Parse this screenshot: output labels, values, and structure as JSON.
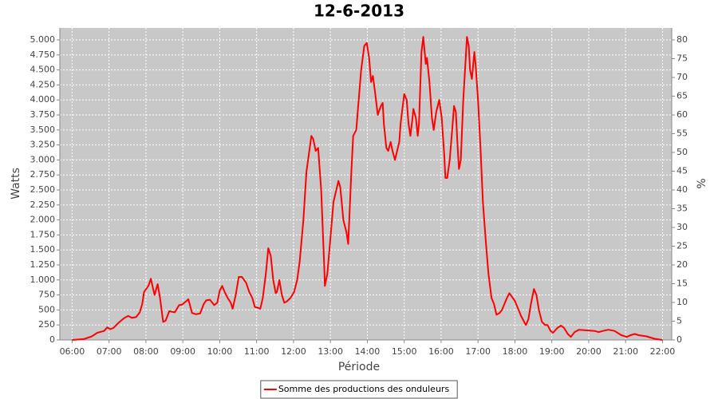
{
  "chart_data": {
    "type": "line",
    "title": "12-6-2013",
    "xlabel": "Période",
    "ylabel": "Watts",
    "y2label": "%",
    "x": [
      "06:00",
      "06:19",
      "06:32",
      "06:41",
      "06:52",
      "06:57",
      "07:02",
      "07:07",
      "07:15",
      "07:24",
      "07:31",
      "07:37",
      "07:44",
      "07:50",
      "07:54",
      "07:57",
      "08:04",
      "08:08",
      "08:14",
      "08:19",
      "08:23",
      "08:28",
      "08:32",
      "08:38",
      "08:42",
      "08:47",
      "08:54",
      "08:59",
      "09:06",
      "09:09",
      "09:15",
      "09:21",
      "09:28",
      "09:34",
      "09:38",
      "09:44",
      "09:51",
      "09:56",
      "10:00",
      "10:04",
      "10:08",
      "10:13",
      "10:18",
      "10:21",
      "10:26",
      "10:31",
      "10:36",
      "10:43",
      "10:48",
      "10:53",
      "10:57",
      "11:01",
      "11:06",
      "11:10",
      "11:15",
      "11:19",
      "11:23",
      "11:27",
      "11:31",
      "11:33",
      "11:37",
      "11:41",
      "11:45",
      "11:49",
      "11:55",
      "12:01",
      "12:06",
      "12:10",
      "12:16",
      "12:21",
      "12:29",
      "12:32",
      "12:36",
      "12:40",
      "12:45",
      "12:50",
      "12:51",
      "12:55",
      "13:00",
      "13:05",
      "13:13",
      "13:16",
      "13:21",
      "13:26",
      "13:29",
      "13:31",
      "13:34",
      "13:37",
      "13:42",
      "13:44",
      "13:50",
      "13:55",
      "13:59",
      "14:03",
      "14:06",
      "14:09",
      "14:13",
      "14:17",
      "14:22",
      "14:25",
      "14:27",
      "14:31",
      "14:34",
      "14:38",
      "14:41",
      "14:45",
      "14:52",
      "14:54",
      "15:00",
      "15:04",
      "15:07",
      "15:10",
      "15:13",
      "15:15",
      "15:19",
      "15:22",
      "15:24",
      "15:28",
      "15:31",
      "15:35",
      "15:37",
      "15:41",
      "15:45",
      "15:48",
      "15:52",
      "15:57",
      "16:01",
      "16:05",
      "16:07",
      "16:10",
      "16:14",
      "16:18",
      "16:21",
      "16:24",
      "16:27",
      "16:29",
      "16:32",
      "16:36",
      "16:40",
      "16:42",
      "16:45",
      "16:47",
      "16:50",
      "16:54",
      "16:56",
      "17:00",
      "17:04",
      "17:08",
      "17:13",
      "17:17",
      "17:22",
      "17:26",
      "17:30",
      "17:35",
      "17:39",
      "17:43",
      "17:47",
      "17:51",
      "17:53",
      "18:00",
      "18:06",
      "18:10",
      "18:16",
      "18:18",
      "18:22",
      "18:26",
      "18:31",
      "18:35",
      "18:39",
      "18:44",
      "18:49",
      "18:53",
      "18:58",
      "19:02",
      "19:09",
      "19:15",
      "19:20",
      "19:26",
      "19:31",
      "19:37",
      "19:44",
      "19:57",
      "20:10",
      "20:16",
      "20:23",
      "20:32",
      "20:42",
      "20:53",
      "21:02",
      "21:08",
      "21:15",
      "21:21",
      "21:34",
      "21:47",
      "22:00"
    ],
    "series": [
      {
        "name": "Somme des productions des onduleurs",
        "color": "#ff0000",
        "values": [
          0,
          15,
          60,
          120,
          150,
          210,
          180,
          200,
          280,
          360,
          400,
          370,
          380,
          460,
          600,
          800,
          900,
          1020,
          750,
          930,
          700,
          300,
          320,
          480,
          470,
          460,
          580,
          590,
          650,
          680,
          450,
          430,
          440,
          600,
          660,
          670,
          580,
          620,
          820,
          900,
          800,
          700,
          620,
          520,
          750,
          1050,
          1050,
          950,
          800,
          700,
          550,
          540,
          520,
          700,
          1100,
          1530,
          1400,
          1000,
          780,
          800,
          1000,
          750,
          620,
          640,
          700,
          800,
          1000,
          1300,
          2000,
          2800,
          3400,
          3350,
          3150,
          3200,
          2500,
          1200,
          900,
          1100,
          1700,
          2300,
          2650,
          2550,
          2000,
          1800,
          1600,
          2100,
          2800,
          3400,
          3500,
          3750,
          4500,
          4900,
          4950,
          4700,
          4300,
          4400,
          4100,
          3750,
          3900,
          3950,
          3600,
          3200,
          3150,
          3300,
          3150,
          3000,
          3300,
          3600,
          4100,
          4000,
          3600,
          3400,
          3650,
          3850,
          3700,
          3400,
          3600,
          4800,
          5050,
          4600,
          4700,
          4300,
          3700,
          3500,
          3800,
          4000,
          3700,
          3100,
          2700,
          2700,
          3000,
          3500,
          3900,
          3800,
          3200,
          2850,
          3000,
          4000,
          4700,
          5050,
          4900,
          4500,
          4350,
          4800,
          4600,
          4000,
          3200,
          2300,
          1600,
          1100,
          700,
          600,
          420,
          450,
          500,
          600,
          700,
          780,
          750,
          650,
          500,
          400,
          280,
          250,
          350,
          600,
          850,
          750,
          500,
          300,
          250,
          250,
          150,
          120,
          200,
          240,
          200,
          100,
          50,
          130,
          170,
          160,
          150,
          130,
          150,
          170,
          150,
          80,
          50,
          80,
          100,
          80,
          60,
          20,
          0
        ]
      }
    ],
    "xlim": [
      "05:40",
      "22:15"
    ],
    "xticks": [
      "06:00",
      "07:00",
      "08:00",
      "09:00",
      "10:00",
      "11:00",
      "12:00",
      "13:00",
      "14:00",
      "15:00",
      "16:00",
      "17:00",
      "18:00",
      "19:00",
      "20:00",
      "21:00",
      "22:00"
    ],
    "ylim": [
      0,
      5200
    ],
    "yticks": [
      0,
      250,
      500,
      750,
      {
        "value": 1000,
        "label": "1.000"
      },
      {
        "value": 1250,
        "label": "1.250"
      },
      {
        "value": 1500,
        "label": "1.500"
      },
      {
        "value": 1750,
        "label": "1.750"
      },
      {
        "value": 2000,
        "label": "2.000"
      },
      {
        "value": 2250,
        "label": "2.250"
      },
      {
        "value": 2500,
        "label": "2.500"
      },
      {
        "value": 2750,
        "label": "2.750"
      },
      {
        "value": 3000,
        "label": "3.000"
      },
      {
        "value": 3250,
        "label": "3.250"
      },
      {
        "value": 3500,
        "label": "3.500"
      },
      {
        "value": 3750,
        "label": "3.750"
      },
      {
        "value": 4000,
        "label": "4.000"
      },
      {
        "value": 4250,
        "label": "4.250"
      },
      {
        "value": 4500,
        "label": "4.500"
      },
      {
        "value": 4750,
        "label": "4.750"
      },
      {
        "value": 5000,
        "label": "5.000"
      }
    ],
    "y2lim": [
      0,
      83.2
    ],
    "y2ticks": [
      0,
      5,
      10,
      15,
      20,
      25,
      30,
      35,
      40,
      45,
      50,
      55,
      60,
      65,
      70,
      75,
      80
    ],
    "grid": true,
    "legend": "bottom"
  }
}
